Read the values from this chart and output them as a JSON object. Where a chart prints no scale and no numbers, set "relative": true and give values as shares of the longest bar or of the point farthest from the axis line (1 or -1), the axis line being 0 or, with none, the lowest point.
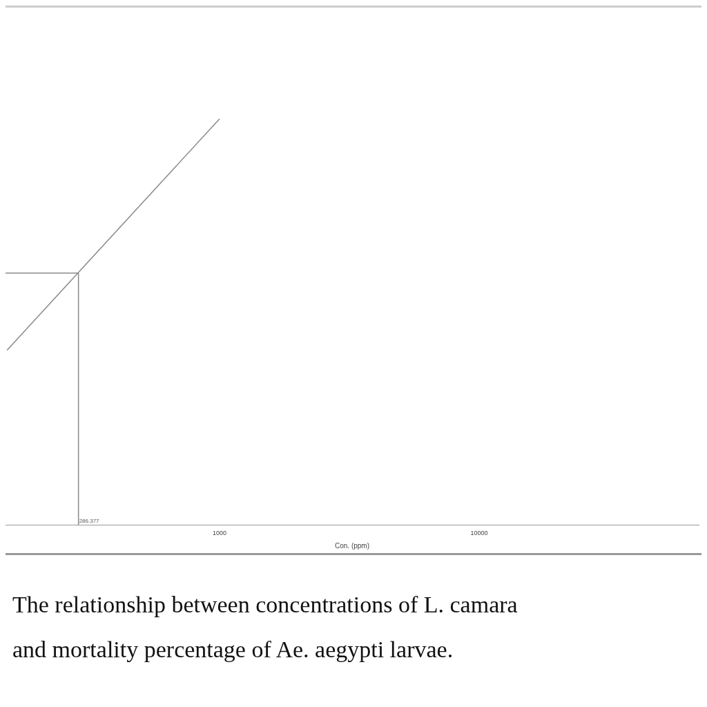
{
  "chart_data": {
    "type": "line",
    "relative": true,
    "log": "x",
    "xlabel": "Con. (ppm)",
    "xlim": [
      150,
      70000
    ],
    "xticks": [
      1000,
      10000
    ],
    "x": [
      152,
      1000
    ],
    "series": [
      {
        "color": "#888888",
        "values": [
          0.43,
          1
        ]
      }
    ],
    "ref_lines": [
      {
        "axis": "x",
        "value": 286.377,
        "color": "#888888"
      },
      {
        "axis": "y",
        "value": 0.62,
        "color": "#888888"
      }
    ],
    "grid": false,
    "legend": false,
    "marker": "none",
    "line_style": "solid",
    "annotations": [
      {
        "text": "286.377",
        "x": 286.377,
        "y": 0
      },
      "The relationship between concentrations of L. camara",
      "and mortality percentage of Ae. aegypti larvae."
    ]
  }
}
